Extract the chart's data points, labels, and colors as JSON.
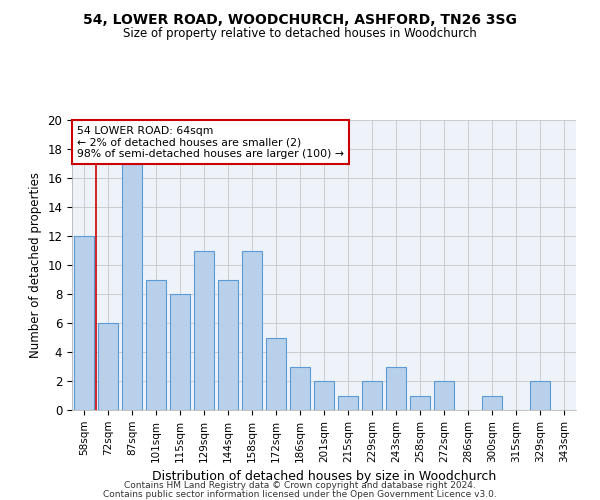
{
  "title1": "54, LOWER ROAD, WOODCHURCH, ASHFORD, TN26 3SG",
  "title2": "Size of property relative to detached houses in Woodchurch",
  "xlabel": "Distribution of detached houses by size in Woodchurch",
  "ylabel": "Number of detached properties",
  "categories": [
    "58sqm",
    "72sqm",
    "87sqm",
    "101sqm",
    "115sqm",
    "129sqm",
    "144sqm",
    "158sqm",
    "172sqm",
    "186sqm",
    "201sqm",
    "215sqm",
    "229sqm",
    "243sqm",
    "258sqm",
    "272sqm",
    "286sqm",
    "300sqm",
    "315sqm",
    "329sqm",
    "343sqm"
  ],
  "values": [
    12,
    6,
    17,
    9,
    8,
    11,
    9,
    11,
    5,
    3,
    2,
    1,
    2,
    3,
    1,
    2,
    0,
    1,
    0,
    2,
    0
  ],
  "bar_color": "#b8d0ea",
  "bar_edge_color": "#5b9bd5",
  "annotation_box_text": "54 LOWER ROAD: 64sqm\n← 2% of detached houses are smaller (2)\n98% of semi-detached houses are larger (100) →",
  "annotation_box_color": "white",
  "annotation_box_edge_color": "#cc0000",
  "vline_x": 0.5,
  "ylim": [
    0,
    20
  ],
  "yticks": [
    0,
    2,
    4,
    6,
    8,
    10,
    12,
    14,
    16,
    18,
    20
  ],
  "grid_color": "#cccccc",
  "bg_color": "#eef2f9",
  "footer1": "Contains HM Land Registry data © Crown copyright and database right 2024.",
  "footer2": "Contains public sector information licensed under the Open Government Licence v3.0."
}
